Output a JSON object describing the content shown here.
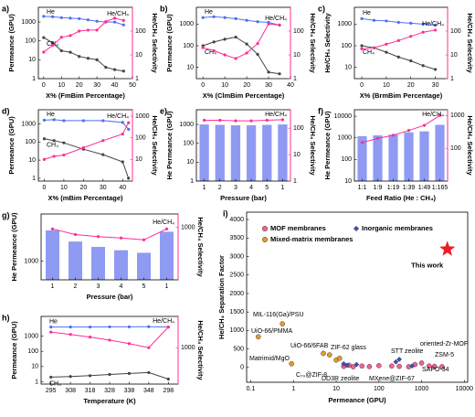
{
  "chart_data": [
    {
      "type": "line",
      "label": "a)",
      "xlabel": "X% (FmBim Percentage)",
      "ylabel": "Permeance (GPU)",
      "y2label": "He/CH₄ Selectivity",
      "x": [
        0,
        5,
        10,
        15,
        20,
        25,
        30,
        35,
        40,
        45
      ],
      "xlim": [
        -3,
        50
      ],
      "xticks": [
        0,
        10,
        20,
        30,
        40,
        50
      ],
      "ylim": [
        1,
        6000
      ],
      "ylog": true,
      "yticks": [
        1,
        10,
        100,
        1000
      ],
      "y2lim": [
        1,
        1000
      ],
      "y2log": true,
      "y2ticks": [
        1,
        10,
        100
      ],
      "series": [
        {
          "name": "He",
          "color": "#4f6ff0",
          "values": [
            2000,
            1900,
            1700,
            1600,
            1500,
            1300,
            1100,
            1000,
            1000,
            700
          ]
        },
        {
          "name": "CH₄",
          "color": "#444444",
          "values": [
            150,
            80,
            30,
            25,
            15,
            12,
            10,
            4,
            3,
            2.5
          ]
        },
        {
          "name": "He/CH₄",
          "color": "#ff2d96",
          "axis": "y2",
          "values": [
            13,
            25,
            55,
            65,
            100,
            110,
            110,
            250,
            350,
            280
          ]
        }
      ]
    },
    {
      "type": "line",
      "label": "b)",
      "xlabel": "X% (ClmBim Percentage)",
      "ylabel": "Permeance (GPU)",
      "y2label": "He/CH₄ Selectivity",
      "x": [
        0,
        5,
        10,
        15,
        20,
        25,
        30,
        35
      ],
      "xlim": [
        -3,
        40
      ],
      "xticks": [
        0,
        10,
        20,
        30,
        40
      ],
      "ylim": [
        3,
        6000
      ],
      "ylog": true,
      "yticks": [
        10,
        100,
        1000
      ],
      "y2lim": [
        1,
        1000
      ],
      "y2log": true,
      "y2ticks": [
        1,
        10,
        100
      ],
      "series": [
        {
          "name": "He",
          "color": "#4f6ff0",
          "values": [
            2000,
            2200,
            2000,
            1800,
            1500,
            1300,
            1200,
            900
          ]
        },
        {
          "name": "CH₄",
          "color": "#444444",
          "values": [
            100,
            150,
            200,
            250,
            120,
            40,
            6,
            5
          ]
        },
        {
          "name": "He/CH₄",
          "color": "#ff2d96",
          "axis": "y2",
          "values": [
            20,
            15,
            10,
            7,
            12,
            30,
            200,
            180
          ]
        }
      ]
    },
    {
      "type": "line",
      "label": "c)",
      "xlabel": "X% (BrmBim Percentage)",
      "ylabel": "He/CH₄ Selectivity",
      "y2label": "He/CH₄ Selectivity",
      "x": [
        0,
        5,
        10,
        15,
        20,
        25,
        30
      ],
      "xlim": [
        -3,
        35
      ],
      "xticks": [
        0,
        10,
        20,
        30
      ],
      "ylim": [
        3,
        6000
      ],
      "ylog": true,
      "yticks": [
        10,
        100,
        1000
      ],
      "y2lim": [
        1,
        1000
      ],
      "y2log": true,
      "y2ticks": [
        1,
        10,
        100
      ],
      "series": [
        {
          "name": "He",
          "color": "#4f6ff0",
          "values": [
            1800,
            1500,
            1400,
            1200,
            1100,
            1000,
            900
          ]
        },
        {
          "name": "CH₄",
          "color": "#444444",
          "values": [
            100,
            80,
            50,
            30,
            20,
            12,
            8
          ]
        },
        {
          "name": "He/CH₄",
          "color": "#ff2d96",
          "axis": "y2",
          "values": [
            18,
            20,
            28,
            40,
            60,
            90,
            110
          ]
        }
      ]
    },
    {
      "type": "line",
      "label": "d)",
      "xlabel": "X% (mBim Percentage)",
      "ylabel": "Permeance (GPU)",
      "y2label": "He/CH₄ Selectivity",
      "x": [
        0,
        5,
        10,
        20,
        30,
        40,
        43
      ],
      "xlim": [
        -3,
        45
      ],
      "xticks": [
        0,
        10,
        20,
        30,
        40
      ],
      "ylim": [
        0.7,
        6000
      ],
      "ylog": true,
      "yticks": [
        1,
        10,
        100,
        1000
      ],
      "y2lim": [
        1,
        2000
      ],
      "y2log": true,
      "y2ticks": [
        10,
        100,
        1000
      ],
      "series": [
        {
          "name": "He",
          "color": "#4f6ff0",
          "values": [
            1600,
            1700,
            1500,
            1500,
            1500,
            1200,
            500
          ]
        },
        {
          "name": "CH₄",
          "color": "#444444",
          "values": [
            150,
            120,
            90,
            40,
            20,
            8,
            1
          ]
        },
        {
          "name": "He/CH₄",
          "color": "#ff2d96",
          "axis": "y2",
          "values": [
            10,
            14,
            16,
            35,
            75,
            150,
            500
          ]
        }
      ]
    },
    {
      "type": "bar",
      "label": "e)",
      "xlabel": "Pressure (bar)",
      "ylabel": "He Permeance (GPU)",
      "y2label": "He/CH₄ Selectivity",
      "categories": [
        "1",
        "2",
        "3",
        "4",
        "5",
        "1"
      ],
      "ylim": [
        1,
        6000
      ],
      "ylog": true,
      "yticks": [
        1,
        10,
        100,
        1000
      ],
      "y2lim": [
        1,
        500
      ],
      "y2log": true,
      "y2ticks": [
        1,
        10,
        100
      ],
      "series": [
        {
          "color": "#8f9bf2",
          "values": [
            1000,
            950,
            900,
            900,
            950,
            1000
          ]
        },
        {
          "name": "He/CH₄",
          "color": "#ff2d96",
          "axis": "y2",
          "values": [
            200,
            200,
            190,
            190,
            200,
            210
          ]
        }
      ]
    },
    {
      "type": "bar",
      "label": "f)",
      "xlabel": "Feed Ratio (He : CH₄)",
      "ylabel": "He Permeance (GPU)",
      "y2label": "He/CH₄ Selectivity",
      "categories": [
        "1:1",
        "1:9",
        "1:19",
        "1:39",
        "1:49",
        "1:165"
      ],
      "ylim": [
        10,
        20000
      ],
      "ylog": true,
      "yticks": [
        10,
        100,
        1000,
        10000
      ],
      "y2lim": [
        10,
        1500
      ],
      "y2log": true,
      "y2ticks": [
        100,
        1000
      ],
      "series": [
        {
          "color": "#8f9bf2",
          "values": [
            1200,
            1300,
            1400,
            1800,
            2000,
            4000
          ]
        },
        {
          "name": "He/CH₄",
          "color": "#ff2d96",
          "axis": "y2",
          "values": [
            150,
            200,
            250,
            350,
            500,
            1000
          ]
        }
      ]
    },
    {
      "type": "bar",
      "label": "g)",
      "xlabel": "Pressure (bar)",
      "ylabel": "He Permeance (GPU)",
      "y2label": "He/CH₄ Selectivity",
      "categories": [
        "1",
        "2",
        "3",
        "4",
        "5",
        "1"
      ],
      "ylim": [
        400,
        10000
      ],
      "ylog": true,
      "yticks": [
        1000
      ],
      "y2lim": [
        200,
        1500
      ],
      "y2log": true,
      "y2ticks": [
        1000
      ],
      "series": [
        {
          "color": "#8f9bf2",
          "values": [
            4500,
            2600,
            2000,
            1700,
            1500,
            4200
          ]
        },
        {
          "name": "He/CH₄",
          "color": "#ff2d96",
          "axis": "y2",
          "values": [
            950,
            800,
            750,
            720,
            680,
            950
          ]
        }
      ]
    },
    {
      "type": "line",
      "label": "h)",
      "xlabel": "Temperature (K)",
      "ylabel": "Permeance (GPU)",
      "y2label": "He/CH₄ Selectivity",
      "categories": [
        "295",
        "308",
        "318",
        "328",
        "338",
        "348",
        "298"
      ],
      "ylim": [
        0.7,
        20000
      ],
      "ylog": true,
      "yticks": [
        1,
        10,
        100,
        1000
      ],
      "y2lim": [
        200,
        4000
      ],
      "y2log": true,
      "y2ticks": [
        1000
      ],
      "series": [
        {
          "name": "He",
          "color": "#4f6ff0",
          "values": [
            4000,
            4000,
            4000,
            4100,
            4100,
            4200,
            4000
          ]
        },
        {
          "name": "CH₄",
          "color": "#444444",
          "values": [
            2,
            2.2,
            2.5,
            3,
            3.5,
            4,
            1.5
          ]
        },
        {
          "name": "He/CH₄",
          "color": "#ff2d96",
          "axis": "y2",
          "values": [
            2000,
            1800,
            1600,
            1400,
            1200,
            1000,
            2500
          ]
        }
      ]
    },
    {
      "type": "scatter",
      "label": "i)",
      "xlabel": "Permeance (GPU)",
      "ylabel": "He/CH₄ Separation Factor",
      "xlim": [
        0.08,
        12000
      ],
      "xlog": true,
      "xticks": [
        0.1,
        1,
        10,
        100,
        1000,
        10000
      ],
      "ylim": [
        -400,
        4200
      ],
      "yticks": [
        0,
        500,
        1000,
        1500,
        2000,
        2500,
        3000,
        3500,
        4000
      ],
      "series": [
        {
          "name": "MOF membranes",
          "color": "#f06292",
          "marker": "circle",
          "x": [
            15,
            20,
            25,
            40,
            60,
            100,
            200,
            300,
            500,
            700,
            1000,
            1500,
            2000,
            3000
          ],
          "values": [
            30,
            60,
            20,
            40,
            25,
            50,
            40,
            30,
            20,
            80,
            120,
            40,
            30,
            20
          ]
        },
        {
          "name": "Inorganic membranes",
          "color": "#3f51b5",
          "marker": "diamond",
          "x": [
            15,
            18,
            30,
            250,
            300,
            600
          ],
          "values": [
            100,
            60,
            80,
            150,
            220,
            40
          ]
        },
        {
          "name": "Mixed-matrix membranes",
          "color": "#e39b2f",
          "marker": "circle",
          "x": [
            0.15,
            0.55,
            0.9,
            5,
            7,
            10,
            12
          ],
          "values": [
            830,
            1180,
            100,
            380,
            340,
            200,
            250
          ]
        },
        {
          "name": "This work",
          "color": "#ee1c25",
          "marker": "star",
          "x": [
            4000
          ],
          "values": [
            3200
          ]
        }
      ],
      "annotations": [
        "MIL-116(Ga)/PSU",
        "UiO-66/PMMA",
        "UiO-66/6FAB",
        "Matrimid/MgO",
        "C₇₀@ZIF-8",
        "ZIF-62 glass",
        "DD3R zeolite",
        "MXene@ZIF-67",
        "STT zeolite",
        "oriented-Zr-MOF",
        "ZSM-5",
        "SAPO-34"
      ]
    }
  ]
}
